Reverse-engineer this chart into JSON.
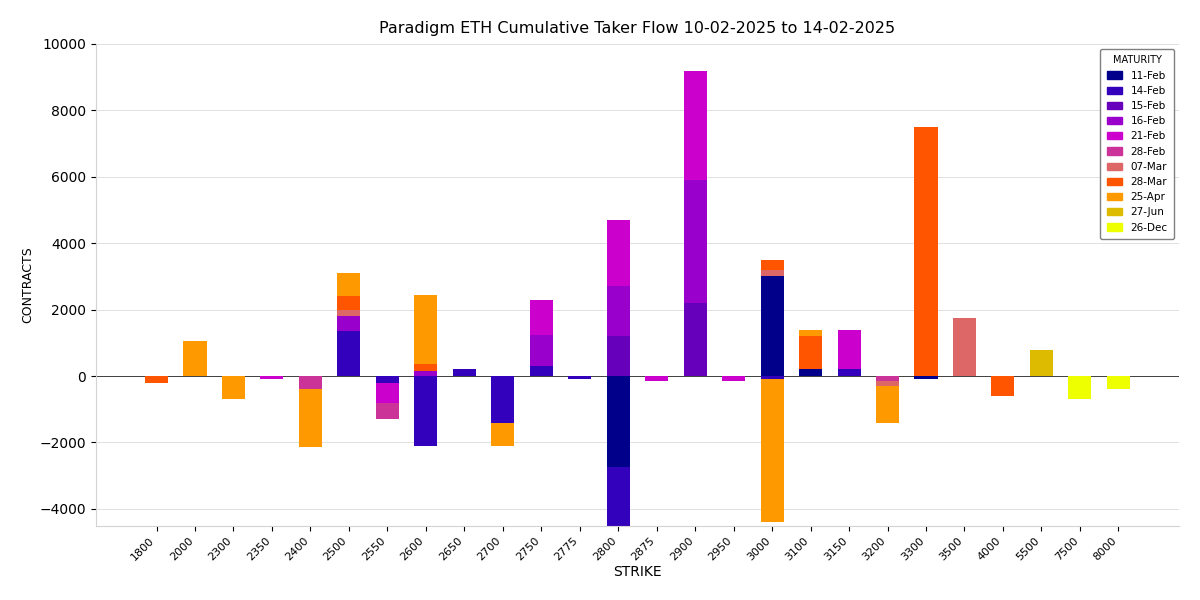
{
  "title": "Paradigm ETH Cumulative Taker Flow 10-02-2025 to 14-02-2025",
  "xlabel": "STRIKE",
  "ylabel": "CONTRACTS",
  "ylim": [
    -4500,
    10000
  ],
  "yticks": [
    -4000,
    -2000,
    0,
    2000,
    4000,
    6000,
    8000,
    10000
  ],
  "strikes": [
    1800,
    2000,
    2300,
    2350,
    2400,
    2500,
    2550,
    2600,
    2650,
    2700,
    2750,
    2775,
    2800,
    2875,
    2900,
    2950,
    3000,
    3100,
    3150,
    3200,
    3300,
    3500,
    4000,
    5500,
    7500,
    8000
  ],
  "maturities": [
    "11-Feb",
    "14-Feb",
    "15-Feb",
    "16-Feb",
    "21-Feb",
    "28-Feb",
    "07-Mar",
    "28-Mar",
    "25-Apr",
    "27-Jun",
    "26-Dec"
  ],
  "colors": {
    "11-Feb": "#00008B",
    "14-Feb": "#3300BB",
    "15-Feb": "#6600BB",
    "16-Feb": "#9900CC",
    "21-Feb": "#CC00CC",
    "28-Feb": "#CC3399",
    "07-Mar": "#DD6666",
    "28-Mar": "#FF5500",
    "25-Apr": "#FF9900",
    "27-Jun": "#DDBB00",
    "26-Dec": "#EEFF00"
  },
  "data": {
    "1800": {
      "28-Mar": -200
    },
    "2000": {
      "25-Apr": 1050
    },
    "2300": {
      "25-Apr": -700
    },
    "2350": {
      "21-Feb": -80
    },
    "2400": {
      "28-Feb": -400,
      "25-Apr": -1750
    },
    "2500": {
      "14-Feb": 1350,
      "16-Feb": 450,
      "07-Mar": 200,
      "28-Mar": 400,
      "25-Apr": 700
    },
    "2550": {
      "14-Feb": -200,
      "21-Feb": -600,
      "28-Feb": -500
    },
    "2600": {
      "14-Feb": -2100,
      "16-Feb": 150,
      "28-Mar": 200,
      "25-Apr": 2100
    },
    "2650": {
      "14-Feb": 200
    },
    "2700": {
      "14-Feb": -1400,
      "25-Apr": -700
    },
    "2750": {
      "14-Feb": 300,
      "16-Feb": 950,
      "21-Feb": 1050
    },
    "2775": {
      "14-Feb": -100
    },
    "2800": {
      "11-Feb": -2750,
      "14-Feb": -2200,
      "15-Feb": 1200,
      "16-Feb": 1500,
      "21-Feb": 2000,
      "25-Apr": -100
    },
    "2875": {
      "21-Feb": -150
    },
    "2900": {
      "15-Feb": 2200,
      "16-Feb": 3700,
      "21-Feb": 3300
    },
    "2950": {
      "21-Feb": -150
    },
    "3000": {
      "11-Feb": 3000,
      "14-Feb": -100,
      "07-Mar": 200,
      "28-Mar": 300,
      "25-Apr": -4300
    },
    "3100": {
      "11-Feb": 200,
      "28-Mar": 1000,
      "25-Apr": 200
    },
    "3150": {
      "14-Feb": 200,
      "21-Feb": 1200
    },
    "3200": {
      "28-Feb": -150,
      "07-Mar": -150,
      "25-Apr": -1100
    },
    "3300": {
      "11-Feb": -100,
      "28-Mar": 7500
    },
    "3500": {
      "07-Mar": 1750
    },
    "4000": {
      "28-Mar": -600
    },
    "5500": {
      "27-Jun": 800
    },
    "7500": {
      "26-Dec": -700
    },
    "8000": {
      "26-Dec": -400
    }
  }
}
